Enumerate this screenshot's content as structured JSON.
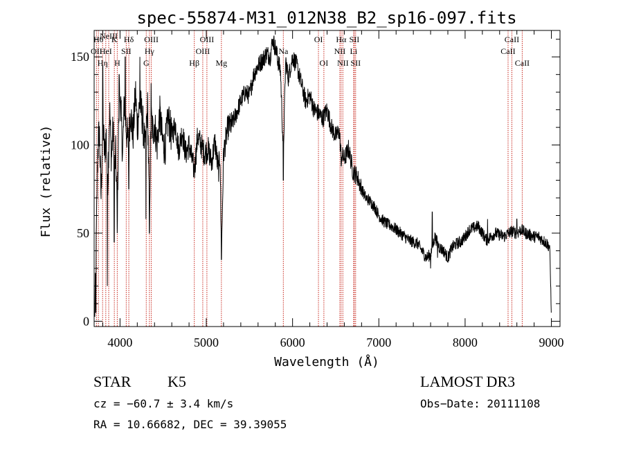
{
  "chart_data": {
    "type": "line",
    "title": "spec-55874-M31_012N38_B2_sp16-097.fits",
    "xlabel": "Wavelength (Å)",
    "ylabel": "Flux (relative)",
    "xlim": [
      3700,
      9100
    ],
    "ylim": [
      -3,
      165
    ],
    "xticks": [
      4000,
      5000,
      6000,
      7000,
      8000,
      9000
    ],
    "yticks": [
      0,
      50,
      100,
      150
    ],
    "series": [
      {
        "name": "spectrum",
        "x": [
          3705,
          3720,
          3740,
          3760,
          3780,
          3800,
          3820,
          3840,
          3860,
          3880,
          3900,
          3920,
          3935,
          3950,
          3968,
          3990,
          4010,
          4030,
          4050,
          4070,
          4101,
          4120,
          4150,
          4180,
          4200,
          4230,
          4260,
          4290,
          4320,
          4340,
          4360,
          4380,
          4400,
          4430,
          4460,
          4490,
          4520,
          4560,
          4600,
          4640,
          4680,
          4720,
          4760,
          4800,
          4861,
          4900,
          4940,
          4980,
          5020,
          5060,
          5100,
          5140,
          5160,
          5175,
          5200,
          5250,
          5300,
          5350,
          5400,
          5450,
          5500,
          5550,
          5600,
          5650,
          5700,
          5740,
          5770,
          5800,
          5830,
          5860,
          5893,
          5920,
          5950,
          6000,
          6050,
          6100,
          6150,
          6200,
          6250,
          6300,
          6350,
          6400,
          6450,
          6500,
          6540,
          6563,
          6600,
          6650,
          6700,
          6750,
          6800,
          6850,
          6900,
          6950,
          7000,
          7050,
          7100,
          7150,
          7200,
          7250,
          7300,
          7350,
          7400,
          7450,
          7500,
          7550,
          7600,
          7650,
          7700,
          7750,
          7800,
          7850,
          7900,
          7950,
          8000,
          8050,
          8100,
          8150,
          8200,
          8250,
          8300,
          8350,
          8400,
          8450,
          8500,
          8550,
          8600,
          8650,
          8700,
          8750,
          8800,
          8850,
          8900,
          8950,
          8980,
          9000
        ],
        "y": [
          2,
          30,
          95,
          110,
          70,
          115,
          95,
          105,
          80,
          120,
          92,
          110,
          85,
          95,
          60,
          130,
          120,
          95,
          125,
          110,
          100,
          120,
          105,
          130,
          110,
          125,
          115,
          98,
          122,
          60,
          115,
          108,
          112,
          100,
          118,
          103,
          98,
          115,
          105,
          112,
          97,
          108,
          95,
          100,
          85,
          105,
          100,
          95,
          98,
          90,
          102,
          85,
          95,
          35,
          95,
          110,
          112,
          118,
          125,
          130,
          128,
          140,
          145,
          148,
          152,
          150,
          160,
          155,
          148,
          142,
          95,
          148,
          138,
          150,
          145,
          135,
          125,
          128,
          120,
          118,
          115,
          120,
          110,
          105,
          108,
          95,
          92,
          98,
          85,
          82,
          75,
          70,
          68,
          65,
          60,
          57,
          55,
          54,
          52,
          50,
          48,
          46,
          45,
          44,
          40,
          36,
          38,
          48,
          42,
          40,
          36,
          42,
          44,
          45,
          48,
          52,
          53,
          54,
          50,
          46,
          48,
          50,
          49,
          48,
          50,
          51,
          50,
          52,
          50,
          49,
          48,
          48,
          46,
          44,
          42,
          5
        ],
        "dips": [
          [
            3720,
            5
          ],
          [
            3853,
            20
          ],
          [
            3933,
            45
          ],
          [
            3968,
            50
          ],
          [
            4101,
            75
          ],
          [
            4300,
            58
          ],
          [
            4340,
            50
          ],
          [
            4861,
            85
          ],
          [
            5175,
            35
          ],
          [
            5893,
            80
          ],
          [
            6563,
            88
          ],
          [
            7600,
            30
          ],
          [
            7680,
            36
          ]
        ],
        "spikes": [
          [
            3800,
            145
          ],
          [
            3990,
            140
          ],
          [
            4060,
            150
          ],
          [
            4230,
            150
          ],
          [
            4360,
            135
          ],
          [
            5770,
            160
          ],
          [
            5820,
            155
          ],
          [
            7620,
            62
          ],
          [
            8260,
            58
          ],
          [
            8600,
            58
          ]
        ]
      }
    ],
    "spectral_lines": [
      {
        "x": 3727,
        "label": "OII",
        "row": 1
      },
      {
        "x": 3750,
        "label": "Hθ",
        "row": 0
      },
      {
        "x": 3798,
        "label": "Hη",
        "row": 2
      },
      {
        "x": 3835,
        "label": "HeI",
        "row": 1
      },
      {
        "x": 3869,
        "label": "NeIII",
        "row": -1
      },
      {
        "x": 3934,
        "label": "K",
        "row": 0
      },
      {
        "x": 3968,
        "label": "H",
        "row": 2
      },
      {
        "x": 4072,
        "label": "SII",
        "row": 1
      },
      {
        "x": 4102,
        "label": "Hδ",
        "row": 0
      },
      {
        "x": 4304,
        "label": "G",
        "row": 2
      },
      {
        "x": 4341,
        "label": "Hγ",
        "row": 1
      },
      {
        "x": 4363,
        "label": "OIII",
        "row": 0
      },
      {
        "x": 4861,
        "label": "Hβ",
        "row": 2
      },
      {
        "x": 4959,
        "label": "OIII",
        "row": 1
      },
      {
        "x": 5007,
        "label": "OIII",
        "row": 0
      },
      {
        "x": 5175,
        "label": "Mg",
        "row": 2
      },
      {
        "x": 5893,
        "label": "Na",
        "row": 1
      },
      {
        "x": 6300,
        "label": "OI",
        "row": 0
      },
      {
        "x": 6363,
        "label": "OI",
        "row": 2
      },
      {
        "x": 6548,
        "label": "NII",
        "row": 1
      },
      {
        "x": 6563,
        "label": "Hα",
        "row": 0
      },
      {
        "x": 6583,
        "label": "NII",
        "row": 2
      },
      {
        "x": 6708,
        "label": "Li",
        "row": 1
      },
      {
        "x": 6716,
        "label": "SII",
        "row": 0
      },
      {
        "x": 6731,
        "label": "SII",
        "row": 2
      },
      {
        "x": 8498,
        "label": "CaII",
        "row": 1
      },
      {
        "x": 8542,
        "label": "CaII",
        "row": 0
      },
      {
        "x": 8662,
        "label": "CaII",
        "row": 2
      }
    ]
  },
  "info": {
    "object_class": "STAR",
    "subclass": "K5",
    "survey": "LAMOST DR3",
    "velocity": "cz = −60.7 ± 3.4 km/s",
    "obs_date": "Obs−Date: 20111108",
    "coords": "RA =  10.66682, DEC =  39.39055"
  }
}
